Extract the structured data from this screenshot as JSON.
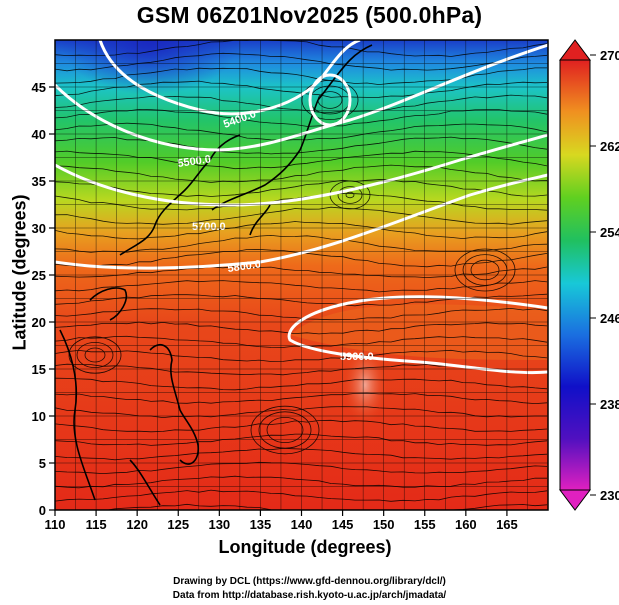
{
  "title": "GSM 06Z01Nov2025 (500.0hPa)",
  "xlabel": "Longitude (degrees)",
  "ylabel": "Latitude  (degrees)",
  "credits": {
    "line1": "Drawing by DCL (https://www.gfd-dennou.org/library/dcl/)",
    "line2": "Data from http://database.rish.kyoto-u.ac.jp/arch/jmadata/"
  },
  "map": {
    "type": "field map with streamlines and contours",
    "lon_range": [
      110,
      170
    ],
    "lat_range": [
      0,
      50
    ],
    "lon_ticks": [
      "110",
      "115",
      "120",
      "125",
      "130",
      "135",
      "140",
      "145",
      "150",
      "155",
      "160",
      "165"
    ],
    "lat_ticks": [
      "0",
      "5",
      "10",
      "15",
      "20",
      "25",
      "30",
      "35",
      "40",
      "45"
    ],
    "grid": true,
    "colorbar": {
      "labels": [
        "270",
        "262",
        "254",
        "246",
        "238",
        "230"
      ],
      "min": 230,
      "max": 270,
      "colors": [
        "#e020c0",
        "#1010c0",
        "#1a6ee0",
        "#18c8d8",
        "#20c060",
        "#60d020",
        "#d8d820",
        "#f09020",
        "#e84818",
        "#e02020"
      ]
    },
    "contour_labels": [
      "5400.0",
      "5500.0",
      "5700.0",
      "5800.0",
      "5900.0"
    ]
  }
}
